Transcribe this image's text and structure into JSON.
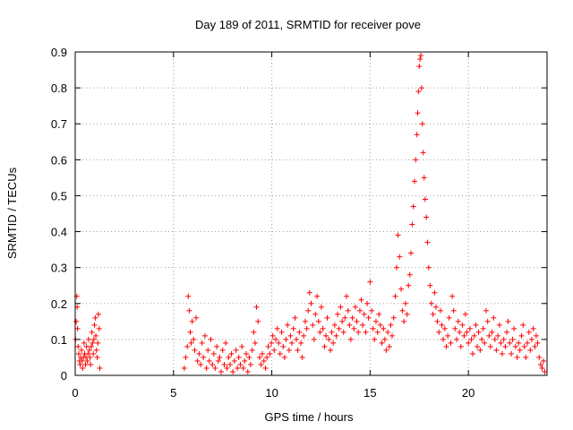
{
  "chart_data": {
    "type": "scatter",
    "title": "Day 189 of 2011, SRMTID for receiver pove",
    "xlabel": "GPS time / hours",
    "ylabel": "SRMTID / TECUs",
    "xlim": [
      0,
      24
    ],
    "ylim": [
      0,
      0.9
    ],
    "xticks": [
      0,
      5,
      10,
      15,
      20
    ],
    "xtick_labels": [
      "0",
      "5",
      "10",
      "15",
      "20"
    ],
    "yticks": [
      0,
      0.1,
      0.2,
      0.3,
      0.4,
      0.5,
      0.6,
      0.7,
      0.8,
      0.9
    ],
    "ytick_labels": [
      "0",
      "0.1",
      "0.2",
      "0.3",
      "0.4",
      "0.5",
      "0.6",
      "0.7",
      "0.8",
      "0.9"
    ],
    "grid": true,
    "marker": "+",
    "color": "#ff0000",
    "series": [
      {
        "name": "SRMTID",
        "points": [
          [
            0.02,
            0.1
          ],
          [
            0.05,
            0.15
          ],
          [
            0.08,
            0.22
          ],
          [
            0.1,
            0.19
          ],
          [
            0.12,
            0.13
          ],
          [
            0.15,
            0.08
          ],
          [
            0.18,
            0.06
          ],
          [
            0.22,
            0.04
          ],
          [
            0.25,
            0.03
          ],
          [
            0.28,
            0.05
          ],
          [
            0.32,
            0.07
          ],
          [
            0.35,
            0.04
          ],
          [
            0.38,
            0.02
          ],
          [
            0.42,
            0.05
          ],
          [
            0.45,
            0.09
          ],
          [
            0.48,
            0.06
          ],
          [
            0.52,
            0.03
          ],
          [
            0.55,
            0.05
          ],
          [
            0.58,
            0.08
          ],
          [
            0.62,
            0.04
          ],
          [
            0.65,
            0.06
          ],
          [
            0.68,
            0.1
          ],
          [
            0.72,
            0.07
          ],
          [
            0.75,
            0.05
          ],
          [
            0.78,
            0.03
          ],
          [
            0.82,
            0.08
          ],
          [
            0.85,
            0.12
          ],
          [
            0.88,
            0.09
          ],
          [
            0.92,
            0.06
          ],
          [
            0.95,
            0.1
          ],
          [
            0.98,
            0.14
          ],
          [
            1.02,
            0.16
          ],
          [
            1.05,
            0.11
          ],
          [
            1.08,
            0.07
          ],
          [
            1.12,
            0.05
          ],
          [
            1.15,
            0.09
          ],
          [
            1.18,
            0.17
          ],
          [
            1.22,
            0.13
          ],
          [
            1.25,
            0.02
          ],
          [
            5.55,
            0.02
          ],
          [
            5.62,
            0.05
          ],
          [
            5.7,
            0.08
          ],
          [
            5.75,
            0.22
          ],
          [
            5.8,
            0.18
          ],
          [
            5.85,
            0.12
          ],
          [
            5.9,
            0.09
          ],
          [
            5.95,
            0.15
          ],
          [
            6.02,
            0.1
          ],
          [
            6.08,
            0.07
          ],
          [
            6.15,
            0.16
          ],
          [
            6.22,
            0.04
          ],
          [
            6.3,
            0.06
          ],
          [
            6.38,
            0.03
          ],
          [
            6.45,
            0.09
          ],
          [
            6.52,
            0.05
          ],
          [
            6.6,
            0.11
          ],
          [
            6.68,
            0.02
          ],
          [
            6.75,
            0.07
          ],
          [
            6.82,
            0.04
          ],
          [
            6.9,
            0.1
          ],
          [
            6.98,
            0.03
          ],
          [
            7.05,
            0.06
          ],
          [
            7.12,
            0.02
          ],
          [
            7.2,
            0.08
          ],
          [
            7.28,
            0.04
          ],
          [
            7.35,
            0.05
          ],
          [
            7.42,
            0.01
          ],
          [
            7.5,
            0.07
          ],
          [
            7.58,
            0.03
          ],
          [
            7.65,
            0.09
          ],
          [
            7.72,
            0.02
          ],
          [
            7.8,
            0.05
          ],
          [
            7.88,
            0.03
          ],
          [
            7.95,
            0.06
          ],
          [
            8.02,
            0.01
          ],
          [
            8.1,
            0.04
          ],
          [
            8.18,
            0.07
          ],
          [
            8.25,
            0.02
          ],
          [
            8.32,
            0.05
          ],
          [
            8.4,
            0.03
          ],
          [
            8.48,
            0.08
          ],
          [
            8.55,
            0.02
          ],
          [
            8.62,
            0.04
          ],
          [
            8.7,
            0.06
          ],
          [
            8.78,
            0.01
          ],
          [
            8.85,
            0.05
          ],
          [
            8.92,
            0.03
          ],
          [
            9.0,
            0.07
          ],
          [
            9.08,
            0.12
          ],
          [
            9.15,
            0.09
          ],
          [
            9.22,
            0.19
          ],
          [
            9.3,
            0.15
          ],
          [
            9.38,
            0.05
          ],
          [
            9.45,
            0.03
          ],
          [
            9.52,
            0.06
          ],
          [
            9.6,
            0.04
          ],
          [
            9.68,
            0.02
          ],
          [
            9.75,
            0.05
          ],
          [
            9.82,
            0.08
          ],
          [
            9.9,
            0.06
          ],
          [
            9.98,
            0.09
          ],
          [
            10.05,
            0.11
          ],
          [
            10.12,
            0.07
          ],
          [
            10.2,
            0.1
          ],
          [
            10.28,
            0.13
          ],
          [
            10.35,
            0.09
          ],
          [
            10.42,
            0.06
          ],
          [
            10.5,
            0.12
          ],
          [
            10.58,
            0.08
          ],
          [
            10.65,
            0.05
          ],
          [
            10.72,
            0.1
          ],
          [
            10.8,
            0.14
          ],
          [
            10.88,
            0.07
          ],
          [
            10.95,
            0.11
          ],
          [
            11.02,
            0.09
          ],
          [
            11.1,
            0.13
          ],
          [
            11.18,
            0.16
          ],
          [
            11.25,
            0.1
          ],
          [
            11.32,
            0.07
          ],
          [
            11.4,
            0.12
          ],
          [
            11.48,
            0.09
          ],
          [
            11.55,
            0.05
          ],
          [
            11.62,
            0.11
          ],
          [
            11.7,
            0.15
          ],
          [
            11.78,
            0.13
          ],
          [
            11.85,
            0.18
          ],
          [
            11.92,
            0.23
          ],
          [
            12.0,
            0.2
          ],
          [
            12.08,
            0.14
          ],
          [
            12.15,
            0.1
          ],
          [
            12.22,
            0.17
          ],
          [
            12.3,
            0.22
          ],
          [
            12.38,
            0.15
          ],
          [
            12.45,
            0.12
          ],
          [
            12.52,
            0.19
          ],
          [
            12.6,
            0.13
          ],
          [
            12.68,
            0.08
          ],
          [
            12.75,
            0.11
          ],
          [
            12.82,
            0.16
          ],
          [
            12.9,
            0.1
          ],
          [
            12.98,
            0.07
          ],
          [
            13.05,
            0.12
          ],
          [
            13.12,
            0.09
          ],
          [
            13.2,
            0.14
          ],
          [
            13.28,
            0.11
          ],
          [
            13.35,
            0.17
          ],
          [
            13.42,
            0.13
          ],
          [
            13.5,
            0.19
          ],
          [
            13.58,
            0.15
          ],
          [
            13.65,
            0.12
          ],
          [
            13.72,
            0.16
          ],
          [
            13.8,
            0.22
          ],
          [
            13.88,
            0.18
          ],
          [
            13.95,
            0.14
          ],
          [
            14.02,
            0.1
          ],
          [
            14.1,
            0.16
          ],
          [
            14.18,
            0.13
          ],
          [
            14.25,
            0.19
          ],
          [
            14.32,
            0.15
          ],
          [
            14.4,
            0.12
          ],
          [
            14.48,
            0.18
          ],
          [
            14.55,
            0.21
          ],
          [
            14.62,
            0.14
          ],
          [
            14.7,
            0.17
          ],
          [
            14.78,
            0.12
          ],
          [
            14.85,
            0.2
          ],
          [
            14.92,
            0.16
          ],
          [
            15.0,
            0.26
          ],
          [
            15.08,
            0.18
          ],
          [
            15.15,
            0.13
          ],
          [
            15.22,
            0.1
          ],
          [
            15.3,
            0.15
          ],
          [
            15.38,
            0.12
          ],
          [
            15.45,
            0.17
          ],
          [
            15.52,
            0.14
          ],
          [
            15.6,
            0.09
          ],
          [
            15.68,
            0.13
          ],
          [
            15.75,
            0.1
          ],
          [
            15.82,
            0.07
          ],
          [
            15.9,
            0.12
          ],
          [
            15.98,
            0.08
          ],
          [
            16.05,
            0.14
          ],
          [
            16.12,
            0.11
          ],
          [
            16.2,
            0.16
          ],
          [
            16.28,
            0.22
          ],
          [
            16.35,
            0.3
          ],
          [
            16.42,
            0.39
          ],
          [
            16.5,
            0.33
          ],
          [
            16.58,
            0.24
          ],
          [
            16.65,
            0.18
          ],
          [
            16.72,
            0.15
          ],
          [
            16.8,
            0.2
          ],
          [
            16.88,
            0.17
          ],
          [
            16.95,
            0.25
          ],
          [
            17.02,
            0.28
          ],
          [
            17.08,
            0.34
          ],
          [
            17.14,
            0.42
          ],
          [
            17.2,
            0.47
          ],
          [
            17.26,
            0.54
          ],
          [
            17.32,
            0.6
          ],
          [
            17.38,
            0.67
          ],
          [
            17.42,
            0.73
          ],
          [
            17.46,
            0.79
          ],
          [
            17.5,
            0.86
          ],
          [
            17.54,
            0.88
          ],
          [
            17.58,
            0.89
          ],
          [
            17.62,
            0.8
          ],
          [
            17.66,
            0.7
          ],
          [
            17.7,
            0.62
          ],
          [
            17.75,
            0.55
          ],
          [
            17.8,
            0.49
          ],
          [
            17.86,
            0.44
          ],
          [
            17.92,
            0.37
          ],
          [
            17.98,
            0.3
          ],
          [
            18.05,
            0.25
          ],
          [
            18.12,
            0.2
          ],
          [
            18.2,
            0.17
          ],
          [
            18.28,
            0.23
          ],
          [
            18.35,
            0.19
          ],
          [
            18.42,
            0.15
          ],
          [
            18.5,
            0.12
          ],
          [
            18.58,
            0.18
          ],
          [
            18.65,
            0.14
          ],
          [
            18.72,
            0.1
          ],
          [
            18.8,
            0.13
          ],
          [
            18.88,
            0.08
          ],
          [
            18.95,
            0.11
          ],
          [
            19.02,
            0.16
          ],
          [
            19.1,
            0.09
          ],
          [
            19.18,
            0.22
          ],
          [
            19.25,
            0.18
          ],
          [
            19.32,
            0.13
          ],
          [
            19.4,
            0.1
          ],
          [
            19.48,
            0.15
          ],
          [
            19.55,
            0.12
          ],
          [
            19.62,
            0.08
          ],
          [
            19.7,
            0.14
          ],
          [
            19.78,
            0.11
          ],
          [
            19.85,
            0.17
          ],
          [
            19.92,
            0.12
          ],
          [
            20.0,
            0.09
          ],
          [
            20.08,
            0.13
          ],
          [
            20.15,
            0.1
          ],
          [
            20.22,
            0.06
          ],
          [
            20.3,
            0.11
          ],
          [
            20.38,
            0.14
          ],
          [
            20.45,
            0.08
          ],
          [
            20.52,
            0.12
          ],
          [
            20.6,
            0.07
          ],
          [
            20.68,
            0.1
          ],
          [
            20.75,
            0.13
          ],
          [
            20.82,
            0.09
          ],
          [
            20.9,
            0.18
          ],
          [
            20.98,
            0.15
          ],
          [
            21.05,
            0.11
          ],
          [
            21.12,
            0.08
          ],
          [
            21.2,
            0.12
          ],
          [
            21.28,
            0.16
          ],
          [
            21.35,
            0.1
          ],
          [
            21.42,
            0.07
          ],
          [
            21.5,
            0.11
          ],
          [
            21.58,
            0.14
          ],
          [
            21.65,
            0.09
          ],
          [
            21.72,
            0.06
          ],
          [
            21.8,
            0.1
          ],
          [
            21.88,
            0.08
          ],
          [
            21.95,
            0.12
          ],
          [
            22.02,
            0.15
          ],
          [
            22.1,
            0.09
          ],
          [
            22.18,
            0.06
          ],
          [
            22.25,
            0.1
          ],
          [
            22.32,
            0.13
          ],
          [
            22.4,
            0.08
          ],
          [
            22.48,
            0.05
          ],
          [
            22.55,
            0.09
          ],
          [
            22.62,
            0.07
          ],
          [
            22.7,
            0.11
          ],
          [
            22.78,
            0.14
          ],
          [
            22.85,
            0.08
          ],
          [
            22.92,
            0.05
          ],
          [
            23.0,
            0.09
          ],
          [
            23.08,
            0.12
          ],
          [
            23.15,
            0.07
          ],
          [
            23.22,
            0.1
          ],
          [
            23.3,
            0.13
          ],
          [
            23.38,
            0.08
          ],
          [
            23.45,
            0.11
          ],
          [
            23.52,
            0.09
          ],
          [
            23.6,
            0.05
          ],
          [
            23.68,
            0.03
          ],
          [
            23.75,
            0.02
          ],
          [
            23.82,
            0.04
          ],
          [
            23.88,
            0.01
          ]
        ]
      }
    ]
  }
}
